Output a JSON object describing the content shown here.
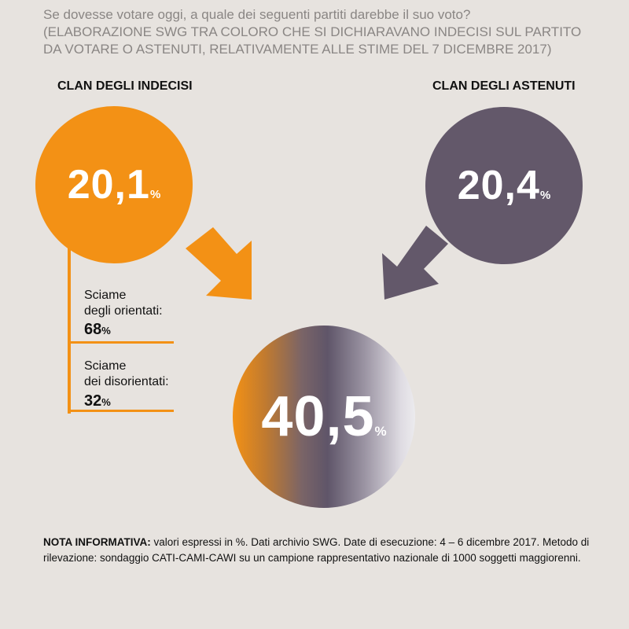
{
  "header": {
    "line1": "Se dovesse votare oggi, a quale dei seguenti partiti darebbe il suo voto?",
    "line2": "(ELABORAZIONE SWG TRA COLORO CHE SI DICHIARAVANO INDECISI SUL PARTITO",
    "line3": "DA VOTARE O ASTENUTI, RELATIVAMENTE ALLE STIME DEL 7 DICEMBRE 2017)"
  },
  "chart_data": {
    "type": "bubble",
    "title": "Se dovesse votare oggi, a quale dei seguenti partiti darebbe il suo voto?",
    "unit": "%",
    "groups": [
      {
        "label": "CLAN DEGLI INDECISI",
        "value": 20.1,
        "display": "20,1"
      },
      {
        "label": "CLAN DEGLI ASTENUTI",
        "value": 20.4,
        "display": "20,4"
      }
    ],
    "total": {
      "value": 40.5,
      "display": "40,5"
    },
    "breakdown": [
      {
        "label_line1": "Sciame",
        "label_line2": "degli orientati:",
        "value": 68,
        "display": "68"
      },
      {
        "label_line1": "Sciame",
        "label_line2": "dei disorientati:",
        "value": 32,
        "display": "32"
      }
    ],
    "colors": {
      "indecisi": "#f39115",
      "astenuti": "#63586a",
      "background": "#e7e3df"
    }
  },
  "labels": {
    "percent": "%"
  },
  "note": {
    "bold": "NOTA INFORMATIVA:",
    "text": " valori espressi in %. Dati archivio SWG. Date di esecuzione: 4 – 6 dicembre 2017. Metodo di rilevazione: sondaggio CATI-CAMI-CAWI su un campione rappresentativo nazionale di 1000 soggetti maggiorenni."
  }
}
